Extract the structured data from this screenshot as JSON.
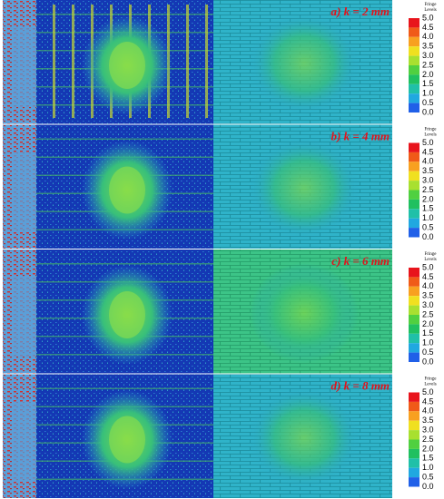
{
  "panels": [
    {
      "caption": "a) k = 2 mm",
      "legend_title": [
        "Fringe",
        "Levels"
      ],
      "ticks": [
        "5.0",
        "4.5",
        "4.0",
        "3.5",
        "3.0",
        "2.5",
        "2.0",
        "1.5",
        "1.0",
        "0.5",
        "0.0"
      ]
    },
    {
      "caption": "b) k = 4 mm",
      "legend_title": [
        "Fringe",
        "Levels"
      ],
      "ticks": [
        "5.0",
        "4.5",
        "4.0",
        "3.5",
        "3.0",
        "2.5",
        "2.0",
        "1.5",
        "1.0",
        "0.5",
        "0.0"
      ]
    },
    {
      "caption": "c) k = 6 mm",
      "legend_title": [
        "Fringe",
        "Levels"
      ],
      "ticks": [
        "5.0",
        "4.5",
        "4.0",
        "3.5",
        "3.0",
        "2.5",
        "2.0",
        "1.5",
        "1.0",
        "0.5",
        "0.0"
      ]
    },
    {
      "caption": "d) k = 8 mm",
      "legend_title": [
        "Fringe",
        "Levels"
      ],
      "ticks": [
        "5.0",
        "4.5",
        "4.0",
        "3.5",
        "3.0",
        "2.5",
        "2.0",
        "1.5",
        "1.0",
        "0.5",
        "0.0"
      ]
    }
  ]
}
